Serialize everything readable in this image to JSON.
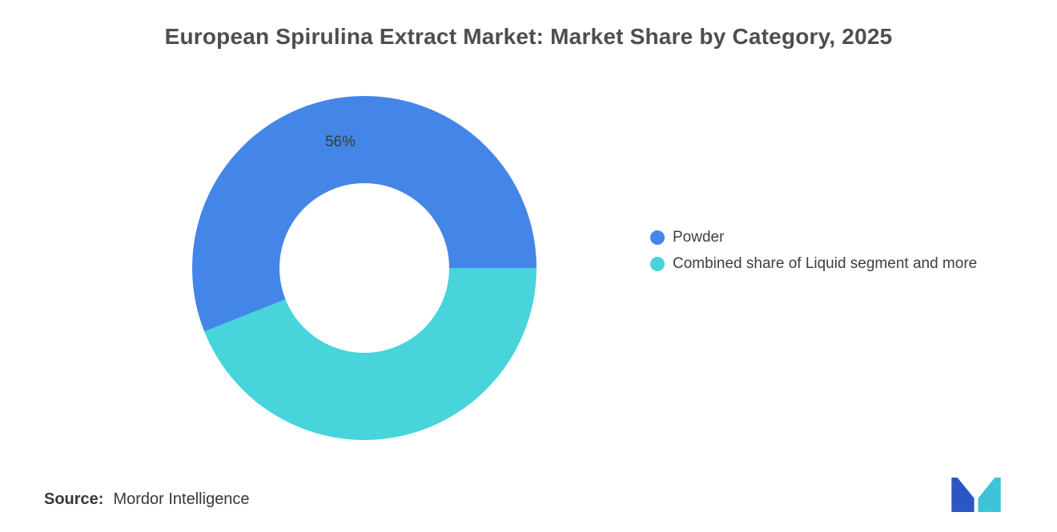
{
  "chart_data": {
    "type": "pie",
    "subtype": "donut",
    "title": "European Spirulina Extract Market: Market Share by Category, 2025",
    "start_angle_deg": 248.4,
    "inner_radius_ratio": 0.49,
    "legend_position": "right-middle",
    "grid": false,
    "slices": [
      {
        "label": "Powder",
        "value": 56,
        "data_label": "56%",
        "color": "#4485e8"
      },
      {
        "label": "Combined share of Liquid segment and more",
        "value": 44,
        "data_label": "",
        "color": "#47d4db"
      }
    ]
  },
  "source": {
    "prefix": "Source:",
    "text": "Mordor Intelligence"
  },
  "logo": {
    "name": "mordor-intelligence-logo",
    "colors": {
      "left": "#2d56c5",
      "right": "#3fc3d6"
    }
  }
}
